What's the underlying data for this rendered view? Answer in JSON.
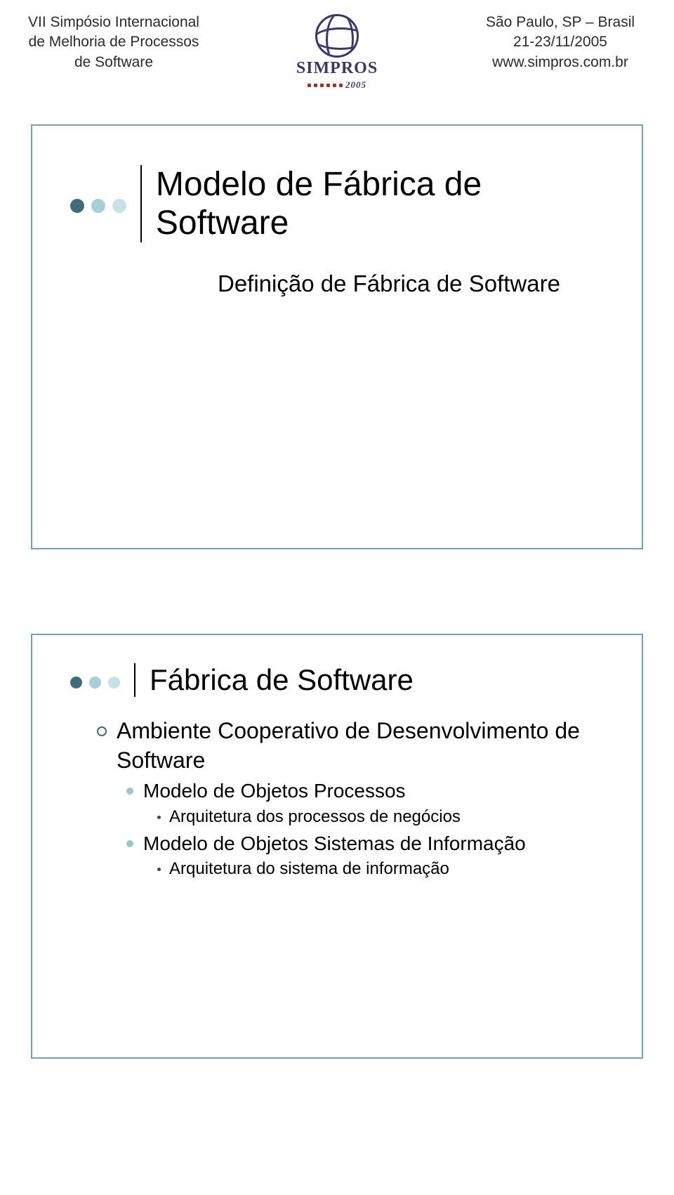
{
  "header": {
    "left_line1": "VII Simpósio Internacional",
    "left_line2": "de Melhoria de Processos",
    "left_line3": "de Software",
    "logo_word": "SIMPROS",
    "logo_year": "2005",
    "right_line1": "São Paulo, SP – Brasil",
    "right_line2": "21-23/11/2005",
    "right_line3": "www.simpros.com.br"
  },
  "colors": {
    "dot1": "#3f6e7a",
    "dot2": "#a7cfd6",
    "dot3": "#c7e2e6",
    "bullet2": "#9dc7ce",
    "border": "#6aa6b6"
  },
  "slide1": {
    "title": "Modelo de Fábrica de Software",
    "subtitle": "Definição de Fábrica de Software"
  },
  "slide2": {
    "title": "Fábrica de Software",
    "items": [
      {
        "level": 1,
        "text": "Ambiente Cooperativo de Desenvolvimento de Software"
      },
      {
        "level": 2,
        "text": "Modelo de Objetos Processos"
      },
      {
        "level": 3,
        "text": "Arquitetura dos processos de negócios"
      },
      {
        "level": 2,
        "text": "Modelo de Objetos Sistemas de Informação"
      },
      {
        "level": 3,
        "text": "Arquitetura do sistema de informação"
      }
    ]
  }
}
